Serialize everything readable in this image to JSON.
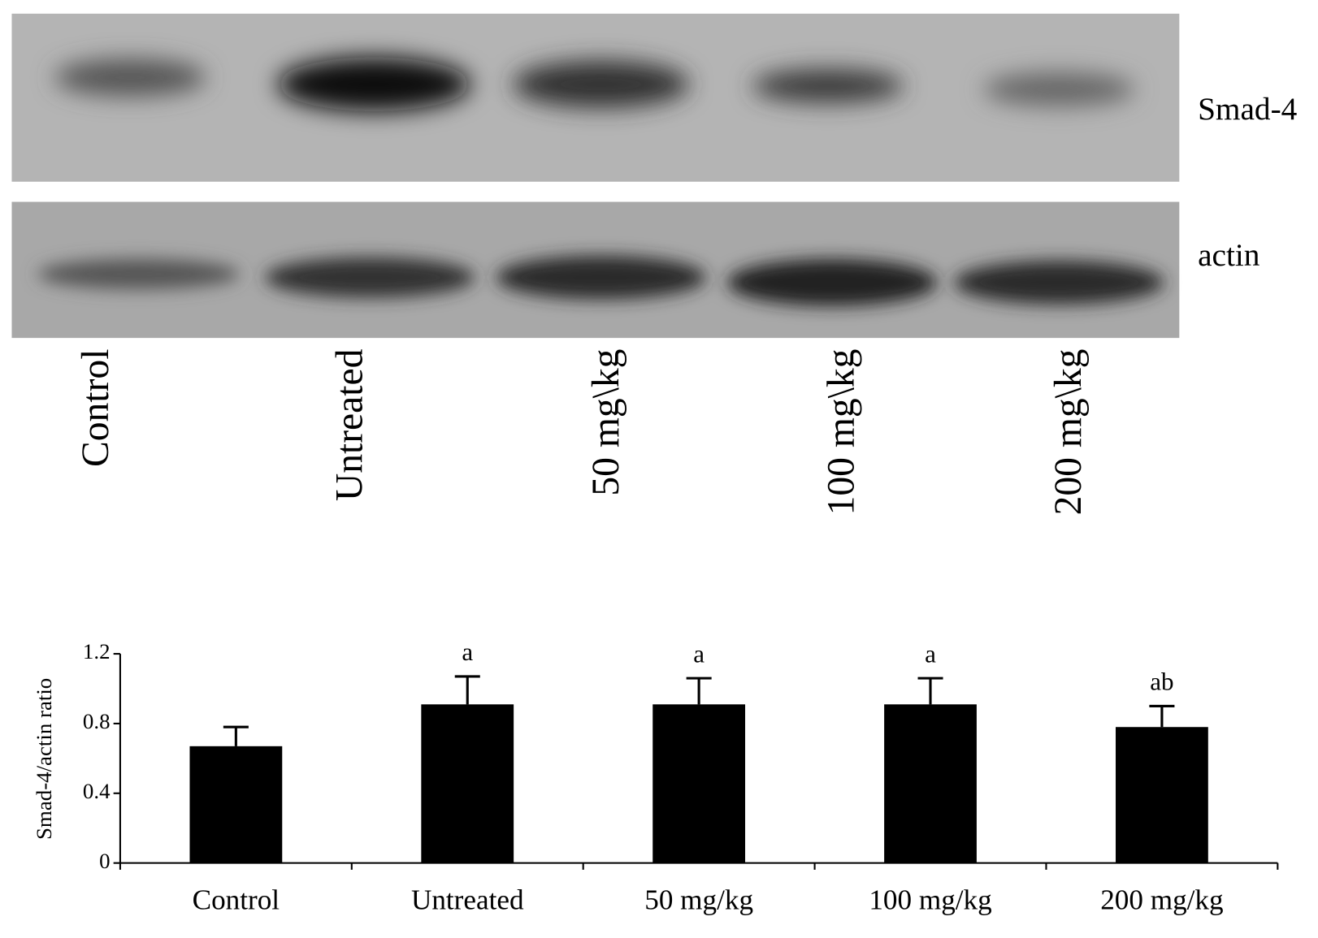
{
  "blot": {
    "rows": [
      "Smad-4",
      "actin"
    ],
    "lanes": [
      "Control",
      "Untreated",
      "50 mg\\kg",
      "100 mg\\kg",
      "200 mg\\kg"
    ]
  },
  "chart_data": {
    "type": "bar",
    "ylabel": "Smad-4/actin ratio",
    "categories": [
      "Control",
      "Untreated",
      "50 mg/kg",
      "100 mg/kg",
      "200 mg/kg"
    ],
    "values": [
      0.67,
      0.91,
      0.91,
      0.91,
      0.78
    ],
    "errors": [
      0.11,
      0.16,
      0.15,
      0.15,
      0.12
    ],
    "annotations": [
      null,
      "a",
      "a",
      "a",
      "ab"
    ],
    "color": "#000000",
    "ylim": [
      0,
      1.2
    ],
    "yticks": [
      0,
      0.4,
      0.8,
      1.2
    ]
  }
}
